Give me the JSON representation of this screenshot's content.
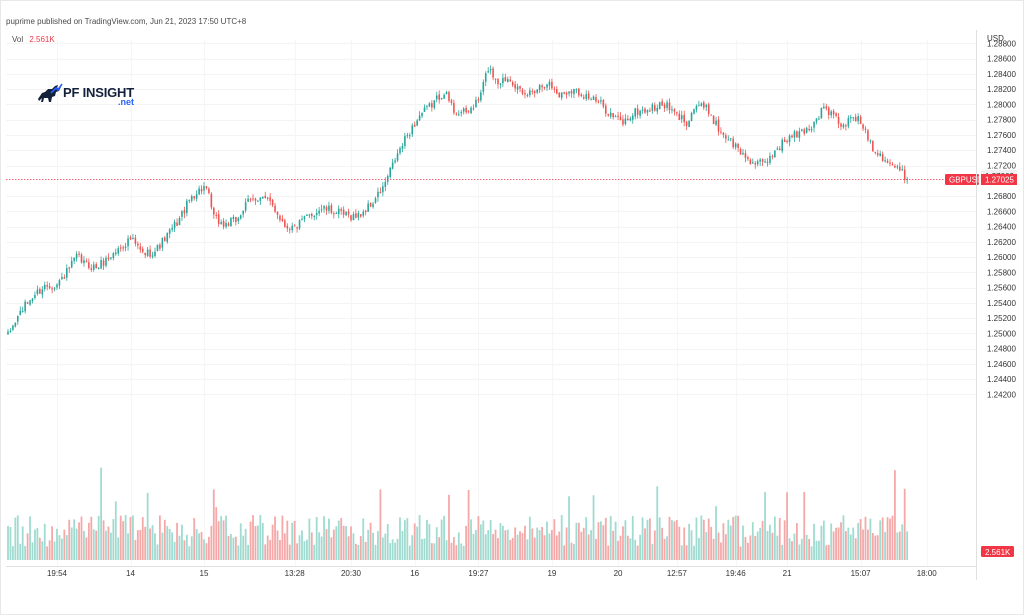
{
  "header": {
    "text": "puprime published on TradingView.com, Jun 21, 2023 17:50 UTC+8"
  },
  "volume_legend": {
    "label": "Vol",
    "value": "2.561K"
  },
  "logo": {
    "text": "PF INSIGHT",
    "sub": ".net",
    "icon": "bull-icon"
  },
  "colors": {
    "up": "#26a69a",
    "down": "#ef5350",
    "up_volume": "#9fdbd0",
    "down_volume": "#f5a8a8",
    "price_line": "#f23645",
    "badge": "#f23645"
  },
  "chart_data": {
    "type": "candlestick",
    "symbol": "GBPUSD",
    "currency": "USD",
    "last_price": 1.27025,
    "last_price_label": "1.27025",
    "second_price_label": "1.27062",
    "last_volume_label": "2.561K",
    "ylim": [
      1.2195,
      1.2895
    ],
    "y_ticks": [
      "1.28800",
      "1.28600",
      "1.28400",
      "1.28200",
      "1.28000",
      "1.27800",
      "1.27600",
      "1.27400",
      "1.27200",
      "1.26800",
      "1.26600",
      "1.26400",
      "1.26200",
      "1.26000",
      "1.25800",
      "1.25600",
      "1.25400",
      "1.25200",
      "1.25000",
      "1.24800",
      "1.24600",
      "1.24400",
      "1.24200"
    ],
    "x_ticks": [
      {
        "label": "19:54",
        "index": 20
      },
      {
        "label": "14",
        "index": 50
      },
      {
        "label": "15",
        "index": 80
      },
      {
        "label": "13:28",
        "index": 117
      },
      {
        "label": "20:30",
        "index": 140
      },
      {
        "label": "16",
        "index": 166
      },
      {
        "label": "19:27",
        "index": 192
      },
      {
        "label": "19",
        "index": 222
      },
      {
        "label": "20",
        "index": 249
      },
      {
        "label": "12:57",
        "index": 273
      },
      {
        "label": "19:46",
        "index": 297
      },
      {
        "label": "21",
        "index": 318
      },
      {
        "label": "15:07",
        "index": 348
      },
      {
        "label": "18:00",
        "index": 375
      }
    ],
    "anchors": [
      [
        0,
        1.2497
      ],
      [
        5,
        1.2528
      ],
      [
        8,
        1.254
      ],
      [
        10,
        1.2548
      ],
      [
        15,
        1.2562
      ],
      [
        20,
        1.2564
      ],
      [
        24,
        1.258
      ],
      [
        28,
        1.26
      ],
      [
        32,
        1.259
      ],
      [
        36,
        1.2586
      ],
      [
        40,
        1.2596
      ],
      [
        45,
        1.261
      ],
      [
        50,
        1.2624
      ],
      [
        55,
        1.2604
      ],
      [
        60,
        1.2608
      ],
      [
        65,
        1.2628
      ],
      [
        70,
        1.265
      ],
      [
        75,
        1.268
      ],
      [
        80,
        1.2692
      ],
      [
        82,
        1.2678
      ],
      [
        84,
        1.2652
      ],
      [
        88,
        1.2642
      ],
      [
        93,
        1.2648
      ],
      [
        98,
        1.2672
      ],
      [
        103,
        1.268
      ],
      [
        108,
        1.2668
      ],
      [
        113,
        1.2642
      ],
      [
        117,
        1.2638
      ],
      [
        122,
        1.2652
      ],
      [
        128,
        1.2664
      ],
      [
        133,
        1.266
      ],
      [
        138,
        1.2654
      ],
      [
        143,
        1.2654
      ],
      [
        148,
        1.2668
      ],
      [
        153,
        1.269
      ],
      [
        158,
        1.2728
      ],
      [
        163,
        1.276
      ],
      [
        168,
        1.2785
      ],
      [
        173,
        1.28
      ],
      [
        178,
        1.2818
      ],
      [
        182,
        1.2792
      ],
      [
        187,
        1.2788
      ],
      [
        192,
        1.2805
      ],
      [
        196,
        1.2848
      ],
      [
        200,
        1.283
      ],
      [
        205,
        1.2836
      ],
      [
        210,
        1.281
      ],
      [
        215,
        1.282
      ],
      [
        220,
        1.283
      ],
      [
        225,
        1.2812
      ],
      [
        230,
        1.282
      ],
      [
        236,
        1.2812
      ],
      [
        242,
        1.28
      ],
      [
        247,
        1.2784
      ],
      [
        251,
        1.2776
      ],
      [
        256,
        1.279
      ],
      [
        262,
        1.2794
      ],
      [
        268,
        1.28
      ],
      [
        273,
        1.2785
      ],
      [
        277,
        1.2778
      ],
      [
        281,
        1.28
      ],
      [
        286,
        1.2792
      ],
      [
        290,
        1.2768
      ],
      [
        295,
        1.2752
      ],
      [
        300,
        1.2734
      ],
      [
        305,
        1.2722
      ],
      [
        309,
        1.2722
      ],
      [
        313,
        1.274
      ],
      [
        318,
        1.2755
      ],
      [
        323,
        1.2762
      ],
      [
        328,
        1.2772
      ],
      [
        333,
        1.2796
      ],
      [
        337,
        1.2784
      ],
      [
        341,
        1.277
      ],
      [
        345,
        1.2786
      ],
      [
        349,
        1.2772
      ],
      [
        353,
        1.2744
      ],
      [
        357,
        1.2732
      ],
      [
        361,
        1.272
      ],
      [
        365,
        1.271
      ],
      [
        367,
        1.27025
      ]
    ]
  }
}
